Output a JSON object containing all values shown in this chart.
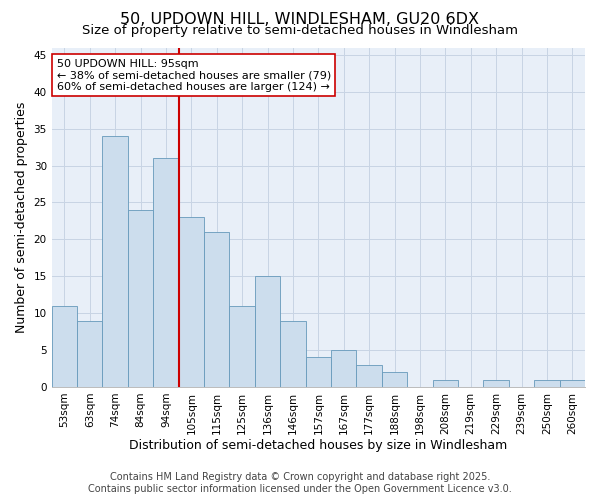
{
  "title1": "50, UPDOWN HILL, WINDLESHAM, GU20 6DX",
  "title2": "Size of property relative to semi-detached houses in Windlesham",
  "xlabel": "Distribution of semi-detached houses by size in Windlesham",
  "ylabel": "Number of semi-detached properties",
  "bins": [
    "53sqm",
    "63sqm",
    "74sqm",
    "84sqm",
    "94sqm",
    "105sqm",
    "115sqm",
    "125sqm",
    "136sqm",
    "146sqm",
    "157sqm",
    "167sqm",
    "177sqm",
    "188sqm",
    "198sqm",
    "208sqm",
    "219sqm",
    "229sqm",
    "239sqm",
    "250sqm",
    "260sqm"
  ],
  "values": [
    11,
    9,
    34,
    24,
    31,
    23,
    21,
    11,
    15,
    9,
    4,
    5,
    3,
    2,
    0,
    1,
    0,
    1,
    0,
    1,
    1
  ],
  "bar_color": "#ccdded",
  "bar_edge_color": "#6699bb",
  "grid_color": "#c8d4e4",
  "bg_color": "#e8eff8",
  "vline_color": "#cc0000",
  "vline_x_index": 4,
  "annotation_text": "50 UPDOWN HILL: 95sqm\n← 38% of semi-detached houses are smaller (79)\n60% of semi-detached houses are larger (124) →",
  "annotation_box_color": "#cc0000",
  "ylim": [
    0,
    46
  ],
  "yticks": [
    0,
    5,
    10,
    15,
    20,
    25,
    30,
    35,
    40,
    45
  ],
  "footer1": "Contains HM Land Registry data © Crown copyright and database right 2025.",
  "footer2": "Contains public sector information licensed under the Open Government Licence v3.0.",
  "title_fontsize": 11.5,
  "subtitle_fontsize": 9.5,
  "axis_label_fontsize": 9,
  "tick_fontsize": 7.5,
  "annot_fontsize": 8,
  "footer_fontsize": 7
}
